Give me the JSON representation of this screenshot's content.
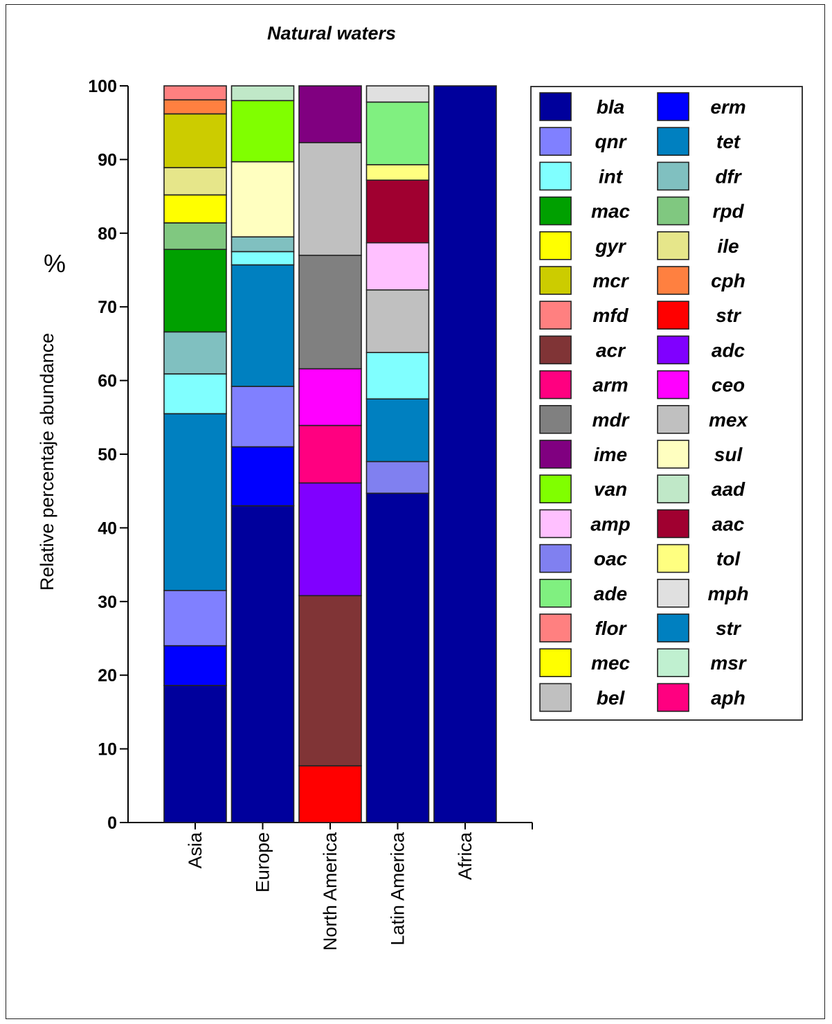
{
  "chart_data": {
    "type": "bar",
    "stacked": true,
    "title": "Natural waters",
    "ylabel": "Relative percentaje abundance",
    "yunit": "%",
    "ylim": [
      0,
      100
    ],
    "yticks": [
      0,
      10,
      20,
      30,
      40,
      50,
      60,
      70,
      80,
      90,
      100
    ],
    "categories": [
      "Asia",
      "Europe",
      "North America",
      "Latin America",
      "Africa"
    ],
    "legend_position": "right",
    "grid": false,
    "legend": [
      {
        "name": "bla",
        "color": "#00009c"
      },
      {
        "name": "erm",
        "color": "#0000ff"
      },
      {
        "name": "qnr",
        "color": "#8080ff"
      },
      {
        "name": "tet",
        "color": "#0080c0"
      },
      {
        "name": "int",
        "color": "#80ffff"
      },
      {
        "name": "dfr",
        "color": "#80c0c0"
      },
      {
        "name": "mac",
        "color": "#00a000"
      },
      {
        "name": "rpd",
        "color": "#80c880"
      },
      {
        "name": "gyr",
        "color": "#ffff00"
      },
      {
        "name": "ile",
        "color": "#e6e68a"
      },
      {
        "name": "mcr",
        "color": "#cccc00"
      },
      {
        "name": "cph",
        "color": "#ff8040"
      },
      {
        "name": "mfd",
        "color": "#ff8080"
      },
      {
        "name": "str",
        "color": "#ff0000"
      },
      {
        "name": "acr",
        "color": "#803436"
      },
      {
        "name": "adc",
        "color": "#8000ff"
      },
      {
        "name": "arm",
        "color": "#ff0080"
      },
      {
        "name": "ceo",
        "color": "#ff00ff"
      },
      {
        "name": "mdr",
        "color": "#808080"
      },
      {
        "name": "mex",
        "color": "#c0c0c0"
      },
      {
        "name": "ime",
        "color": "#800080"
      },
      {
        "name": "sul",
        "color": "#ffffc0"
      },
      {
        "name": "van",
        "color": "#80ff00"
      },
      {
        "name": "aad",
        "color": "#c0e8c8"
      },
      {
        "name": "amp",
        "color": "#ffc0ff"
      },
      {
        "name": "aac",
        "color": "#a00030"
      },
      {
        "name": "oac",
        "color": "#8080f0"
      },
      {
        "name": "tol",
        "color": "#ffff80"
      },
      {
        "name": "ade",
        "color": "#80f080"
      },
      {
        "name": "mph",
        "color": "#e0e0e0"
      },
      {
        "name": "flor",
        "color": "#ff8080"
      },
      {
        "name": "str",
        "color": "#0080c0"
      },
      {
        "name": "mec",
        "color": "#ffff00"
      },
      {
        "name": "msr",
        "color": "#c0f0d0"
      },
      {
        "name": "bel",
        "color": "#c0c0c0"
      },
      {
        "name": "aph",
        "color": "#ff0080"
      }
    ],
    "bars": [
      {
        "category": "Asia",
        "segments": [
          {
            "name": "bla",
            "value": 18.6,
            "color": "#00009c"
          },
          {
            "name": "erm",
            "value": 5.4,
            "color": "#0000ff"
          },
          {
            "name": "qnr",
            "value": 7.5,
            "color": "#8080ff"
          },
          {
            "name": "tet",
            "value": 24.0,
            "color": "#0080c0"
          },
          {
            "name": "int",
            "value": 5.4,
            "color": "#80ffff"
          },
          {
            "name": "dfr",
            "value": 5.7,
            "color": "#80c0c0"
          },
          {
            "name": "mac",
            "value": 11.2,
            "color": "#00a000"
          },
          {
            "name": "rpd",
            "value": 3.6,
            "color": "#80c880"
          },
          {
            "name": "gyr",
            "value": 3.8,
            "color": "#ffff00"
          },
          {
            "name": "ile",
            "value": 3.7,
            "color": "#e6e68a"
          },
          {
            "name": "mcr",
            "value": 7.3,
            "color": "#cccc00"
          },
          {
            "name": "cph",
            "value": 1.9,
            "color": "#ff8040"
          },
          {
            "name": "mfd",
            "value": 1.9,
            "color": "#ff8080"
          }
        ]
      },
      {
        "category": "Europe",
        "segments": [
          {
            "name": "bla",
            "value": 43.0,
            "color": "#00009c"
          },
          {
            "name": "erm",
            "value": 8.0,
            "color": "#0000ff"
          },
          {
            "name": "qnr",
            "value": 8.2,
            "color": "#8080ff"
          },
          {
            "name": "tet",
            "value": 16.5,
            "color": "#0080c0"
          },
          {
            "name": "int",
            "value": 1.8,
            "color": "#80ffff"
          },
          {
            "name": "dfr",
            "value": 2.0,
            "color": "#80c0c0"
          },
          {
            "name": "sul",
            "value": 10.2,
            "color": "#ffffc0"
          },
          {
            "name": "van",
            "value": 8.3,
            "color": "#80ff00"
          },
          {
            "name": "aad",
            "value": 2.0,
            "color": "#c0e8c8"
          }
        ]
      },
      {
        "category": "North America",
        "segments": [
          {
            "name": "str",
            "value": 7.7,
            "color": "#ff0000"
          },
          {
            "name": "acr",
            "value": 23.1,
            "color": "#803436"
          },
          {
            "name": "adc",
            "value": 15.3,
            "color": "#8000ff"
          },
          {
            "name": "arm",
            "value": 7.8,
            "color": "#ff0080"
          },
          {
            "name": "ceo",
            "value": 7.7,
            "color": "#ff00ff"
          },
          {
            "name": "mdr",
            "value": 15.4,
            "color": "#808080"
          },
          {
            "name": "mex",
            "value": 15.3,
            "color": "#c0c0c0"
          },
          {
            "name": "ime",
            "value": 7.7,
            "color": "#800080"
          }
        ]
      },
      {
        "category": "Latin America",
        "segments": [
          {
            "name": "bla",
            "value": 44.7,
            "color": "#00009c"
          },
          {
            "name": "oac",
            "value": 4.3,
            "color": "#8080f0"
          },
          {
            "name": "tet",
            "value": 8.5,
            "color": "#0080c0"
          },
          {
            "name": "int",
            "value": 6.3,
            "color": "#80ffff"
          },
          {
            "name": "mex",
            "value": 8.5,
            "color": "#c0c0c0"
          },
          {
            "name": "amp",
            "value": 6.4,
            "color": "#ffc0ff"
          },
          {
            "name": "aac",
            "value": 8.5,
            "color": "#a00030"
          },
          {
            "name": "tol",
            "value": 2.1,
            "color": "#ffff80"
          },
          {
            "name": "ade",
            "value": 8.5,
            "color": "#80f080"
          },
          {
            "name": "mph",
            "value": 2.2,
            "color": "#e0e0e0"
          }
        ]
      },
      {
        "category": "Africa",
        "segments": [
          {
            "name": "bla",
            "value": 100,
            "color": "#00009c"
          }
        ]
      }
    ]
  }
}
